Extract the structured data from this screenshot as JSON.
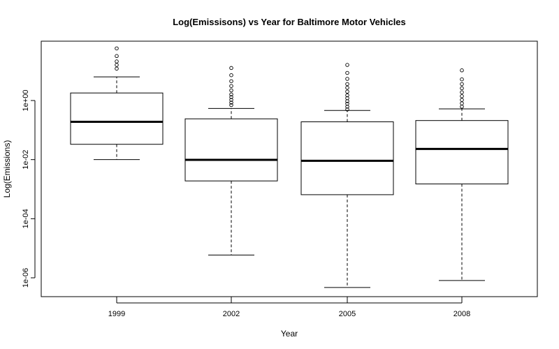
{
  "chart_data": {
    "type": "boxplot",
    "title": "Log(Emissisons) vs Year for Baltimore Motor Vehicles",
    "xlabel": "Year",
    "ylabel": "Log(Emissions)",
    "y_scale": "log10",
    "ylim": [
      3e-07,
      30
    ],
    "y_ticks": [
      {
        "value": 1,
        "label": "1e+00"
      },
      {
        "value": 0.01,
        "label": "1e-02"
      },
      {
        "value": 0.0001,
        "label": "1e-04"
      },
      {
        "value": 1e-06,
        "label": "1e-06"
      }
    ],
    "categories": [
      "1999",
      "2002",
      "2005",
      "2008"
    ],
    "boxes": [
      {
        "category": "1999",
        "whisker_low": 0.01,
        "q1": 0.033,
        "median": 0.19,
        "q3": 1.8,
        "whisker_high": 6.3,
        "outliers": [
          12,
          16,
          21,
          32,
          58
        ]
      },
      {
        "category": "2002",
        "whisker_low": 5.9e-06,
        "q1": 0.0019,
        "median": 0.0098,
        "q3": 0.24,
        "whisker_high": 0.54,
        "outliers": [
          0.7,
          0.85,
          1.05,
          1.3,
          1.6,
          2.2,
          3.1,
          4.5,
          7.2,
          12.6
        ]
      },
      {
        "category": "2005",
        "whisker_low": 4.7e-07,
        "q1": 0.00065,
        "median": 0.0091,
        "q3": 0.19,
        "whisker_high": 0.46,
        "outliers": [
          0.5,
          0.62,
          0.78,
          0.95,
          1.2,
          1.5,
          2,
          2.7,
          3.6,
          5.4,
          8.6,
          16
        ]
      },
      {
        "category": "2008",
        "whisker_low": 8.1e-07,
        "q1": 0.0015,
        "median": 0.023,
        "q3": 0.21,
        "whisker_high": 0.52,
        "outliers": [
          0.62,
          0.8,
          1.05,
          1.4,
          1.9,
          2.6,
          3.6,
          5.2,
          10.5
        ]
      }
    ]
  }
}
